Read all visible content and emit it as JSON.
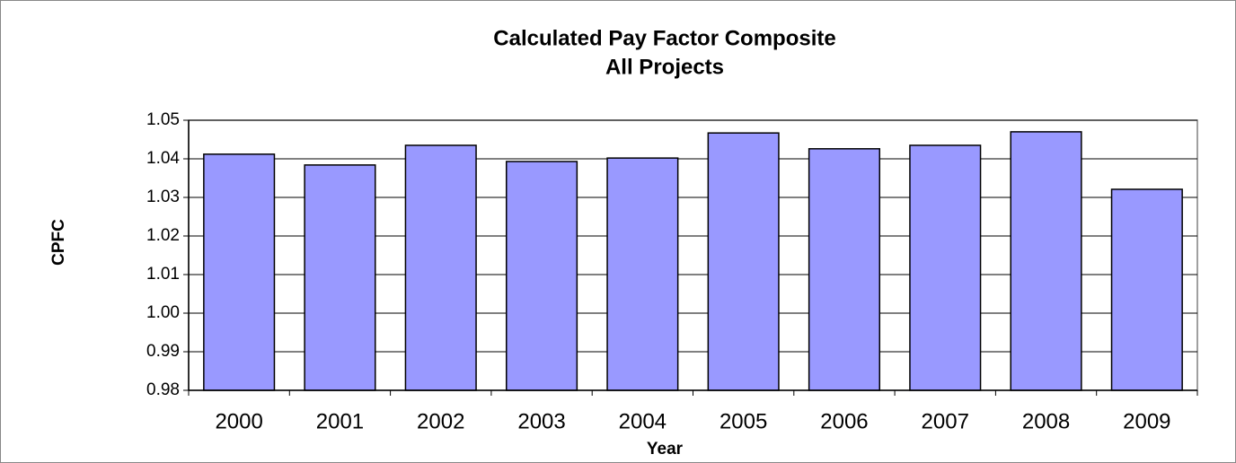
{
  "chart_data": {
    "type": "bar",
    "title": "Calculated Pay Factor Composite",
    "subtitle": "All Projects",
    "x_label": "Year",
    "y_label": "CPFC",
    "categories": [
      "2000",
      "2001",
      "2002",
      "2003",
      "2004",
      "2005",
      "2006",
      "2007",
      "2008",
      "2009"
    ],
    "values": [
      1.0412,
      1.0384,
      1.0435,
      1.0393,
      1.0402,
      1.0467,
      1.0426,
      1.0435,
      1.047,
      1.0321
    ],
    "color": "#9999ff",
    "ylim": [
      0.98,
      1.05
    ],
    "yticks": [
      0.98,
      0.99,
      {
        "value": 1,
        "label": "1.00"
      },
      1.01,
      1.02,
      1.03,
      1.04,
      1.05
    ],
    "grid": true
  }
}
